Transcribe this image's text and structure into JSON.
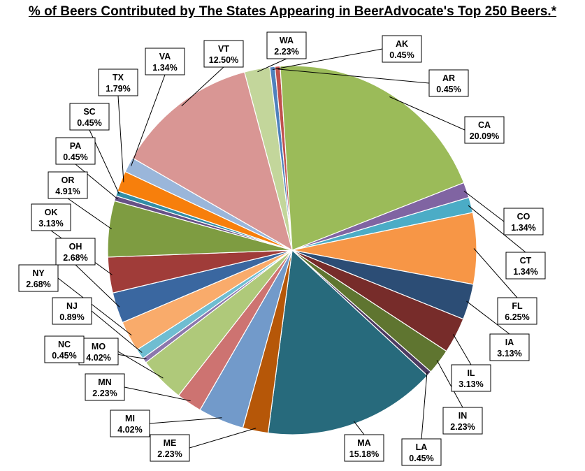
{
  "chart_data": {
    "type": "pie",
    "title": "% of Beers Contributed  by The States Appearing  in BeerAdvocate's Top 250 Beers.*",
    "slices": [
      {
        "label": "WA",
        "value": 2.23,
        "display": "2.23%",
        "color": "#c3d69b"
      },
      {
        "label": "AK",
        "value": 0.45,
        "display": "0.45%",
        "color": "#4f81bd"
      },
      {
        "label": "AR",
        "value": 0.45,
        "display": "0.45%",
        "color": "#c0504d"
      },
      {
        "label": "CA",
        "value": 20.09,
        "display": "20.09%",
        "color": "#9bbb59"
      },
      {
        "label": "CO",
        "value": 1.34,
        "display": "1.34%",
        "color": "#8064a2"
      },
      {
        "label": "CT",
        "value": 1.34,
        "display": "1.34%",
        "color": "#4bacc6"
      },
      {
        "label": "FL",
        "value": 6.25,
        "display": "6.25%",
        "color": "#f79646"
      },
      {
        "label": "IA",
        "value": 3.13,
        "display": "3.13%",
        "color": "#2c4d75"
      },
      {
        "label": "IL",
        "value": 3.13,
        "display": "3.13%",
        "color": "#772c2a"
      },
      {
        "label": "IN",
        "value": 2.23,
        "display": "2.23%",
        "color": "#5f7530"
      },
      {
        "label": "LA",
        "value": 0.45,
        "display": "0.45%",
        "color": "#4d3b62"
      },
      {
        "label": "MA",
        "value": 15.18,
        "display": "15.18%",
        "color": "#276a7c"
      },
      {
        "label": "ME",
        "value": 2.23,
        "display": "2.23%",
        "color": "#b65708"
      },
      {
        "label": "MI",
        "value": 4.02,
        "display": "4.02%",
        "color": "#729aca"
      },
      {
        "label": "MN",
        "value": 2.23,
        "display": "2.23%",
        "color": "#cd7371"
      },
      {
        "label": "MO",
        "value": 4.02,
        "display": "4.02%",
        "color": "#afc97a"
      },
      {
        "label": "NC",
        "value": 0.45,
        "display": "0.45%",
        "color": "#8c77ad"
      },
      {
        "label": "NJ",
        "value": 0.89,
        "display": "0.89%",
        "color": "#6fbdd1"
      },
      {
        "label": "NY",
        "value": 2.68,
        "display": "2.68%",
        "color": "#f9ab6b"
      },
      {
        "label": "OH",
        "value": 2.68,
        "display": "2.68%",
        "color": "#3a67a0"
      },
      {
        "label": "OK",
        "value": 3.13,
        "display": "3.13%",
        "color": "#a03c39"
      },
      {
        "label": "OR",
        "value": 4.91,
        "display": "4.91%",
        "color": "#7e9c41"
      },
      {
        "label": "PA",
        "value": 0.45,
        "display": "0.45%",
        "color": "#675186"
      },
      {
        "label": "SC",
        "value": 0.45,
        "display": "0.45%",
        "color": "#328ea6"
      },
      {
        "label": "TX",
        "value": 1.79,
        "display": "1.79%",
        "color": "#f77f0c"
      },
      {
        "label": "VA",
        "value": 1.34,
        "display": "1.34%",
        "color": "#9ab6da"
      },
      {
        "label": "VT",
        "value": 12.5,
        "display": "12.50%",
        "color": "#d99694"
      }
    ],
    "legend": "none",
    "data_labels": "callout boxes with state and percent"
  }
}
